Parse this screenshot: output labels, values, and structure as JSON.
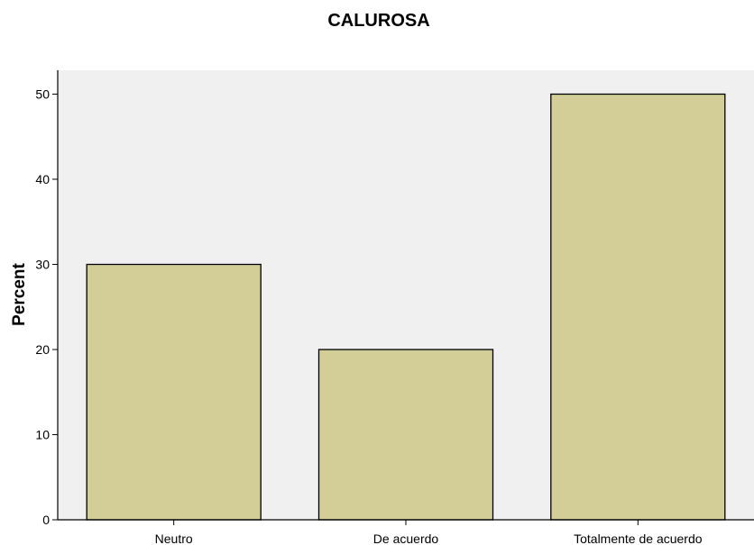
{
  "colors": {
    "plot_background": "#f0f0f0",
    "bar_fill": "#d3ce97",
    "bar_stroke": "#000000",
    "axis": "#000000"
  },
  "chart_data": {
    "type": "bar",
    "title": "CALUROSA",
    "xlabel": "",
    "ylabel": "Percent",
    "categories": [
      "Neutro",
      "De acuerdo",
      "Totalmente de acuerdo"
    ],
    "values": [
      30,
      20,
      50
    ],
    "ylim": [
      0,
      52.8
    ],
    "yticks": [
      0,
      10,
      20,
      30,
      40,
      50
    ],
    "grid": false,
    "legend": "none"
  }
}
